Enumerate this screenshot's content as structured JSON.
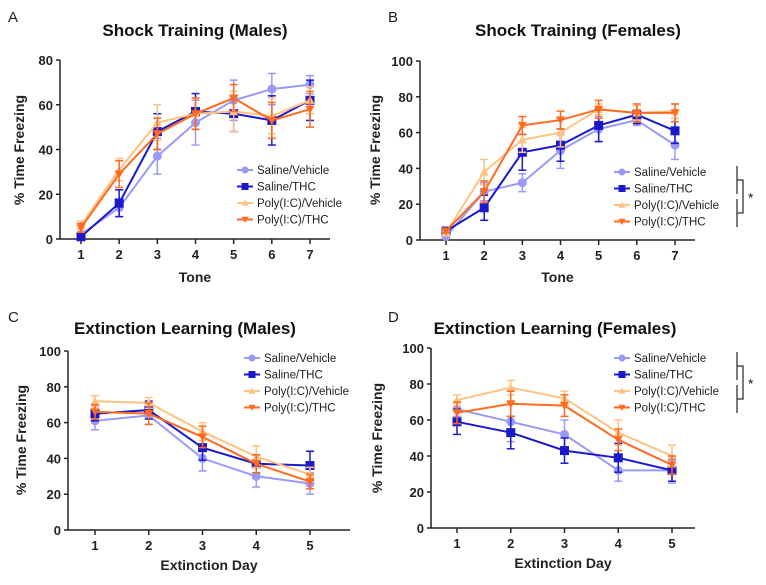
{
  "colors": {
    "Saline/Vehicle": "#9a9af6",
    "Saline/THC": "#1a1acc",
    "Poly(I:C)/Vehicle": "#ffc283",
    "Poly(I:C)/THC": "#ff6a1f"
  },
  "chart_data": [
    {
      "type": "line",
      "panel_label": "A",
      "title": "Shock Training (Males)",
      "xlabel": "Tone",
      "ylabel": "% Time Freezing",
      "ylim": [
        0,
        80
      ],
      "yticks": [
        0,
        20,
        40,
        60,
        80
      ],
      "x": [
        1,
        2,
        3,
        4,
        5,
        6,
        7
      ],
      "legend": "bottom-right",
      "annotation": "",
      "series": [
        {
          "name": "Saline/Vehicle",
          "marker": "circle",
          "values": [
            2,
            14,
            37,
            52,
            62,
            67,
            69
          ],
          "error": [
            1,
            4,
            8,
            10,
            9,
            7,
            4
          ]
        },
        {
          "name": "Saline/THC",
          "marker": "square",
          "values": [
            1,
            16,
            48,
            57,
            56,
            53,
            62
          ],
          "error": [
            1,
            6,
            8,
            8,
            8,
            11,
            9
          ]
        },
        {
          "name": "Poly(I:C)/Vehicle",
          "marker": "triangle-up",
          "values": [
            6,
            31,
            52,
            56,
            57,
            55,
            62
          ],
          "error": [
            2,
            5,
            8,
            7,
            9,
            8,
            6
          ]
        },
        {
          "name": "Poly(I:C)/THC",
          "marker": "triangle-down",
          "values": [
            5,
            29,
            47,
            56,
            63,
            53,
            58
          ],
          "error": [
            2,
            6,
            7,
            7,
            6,
            8,
            8
          ]
        }
      ]
    },
    {
      "type": "line",
      "panel_label": "B",
      "title": "Shock Training (Females)",
      "xlabel": "Tone",
      "ylabel": "% Time Freezing",
      "ylim": [
        0,
        100
      ],
      "yticks": [
        0,
        20,
        40,
        60,
        80,
        100
      ],
      "x": [
        1,
        2,
        3,
        4,
        5,
        6,
        7
      ],
      "legend": "bottom-right",
      "annotation": "*",
      "series": [
        {
          "name": "Saline/Vehicle",
          "marker": "circle",
          "values": [
            2,
            27,
            32,
            50,
            62,
            67,
            53
          ],
          "error": [
            1,
            5,
            5,
            10,
            7,
            3,
            8
          ]
        },
        {
          "name": "Saline/THC",
          "marker": "square",
          "values": [
            5,
            18,
            49,
            53,
            64,
            70,
            61
          ],
          "error": [
            1,
            7,
            10,
            9,
            9,
            5,
            7
          ]
        },
        {
          "name": "Poly(I:C)/Vehicle",
          "marker": "triangle-up",
          "values": [
            4,
            38,
            56,
            60,
            73,
            71,
            72
          ],
          "error": [
            1,
            7,
            7,
            8,
            3,
            4,
            4
          ]
        },
        {
          "name": "Poly(I:C)/THC",
          "marker": "triangle-down",
          "values": [
            5,
            27,
            64,
            67,
            73,
            71,
            71
          ],
          "error": [
            1,
            6,
            5,
            5,
            5,
            5,
            5
          ]
        }
      ]
    },
    {
      "type": "line",
      "panel_label": "C",
      "title": "Extinction Learning (Males)",
      "xlabel": "Extinction Day",
      "ylabel": "% Time Freezing",
      "ylim": [
        0,
        100
      ],
      "yticks": [
        0,
        20,
        40,
        60,
        80,
        100
      ],
      "x": [
        1,
        2,
        3,
        4,
        5
      ],
      "legend": "top-right",
      "annotation": "",
      "series": [
        {
          "name": "Saline/Vehicle",
          "marker": "circle",
          "values": [
            61,
            64,
            40,
            30,
            26
          ],
          "error": [
            5,
            5,
            7,
            6,
            6
          ]
        },
        {
          "name": "Saline/THC",
          "marker": "square",
          "values": [
            65,
            67,
            46,
            37,
            36
          ],
          "error": [
            4,
            5,
            7,
            5,
            8
          ]
        },
        {
          "name": "Poly(I:C)/Vehicle",
          "marker": "triangle-up",
          "values": [
            72,
            71,
            55,
            41,
            31
          ],
          "error": [
            3,
            3,
            5,
            6,
            4
          ]
        },
        {
          "name": "Poly(I:C)/THC",
          "marker": "triangle-down",
          "values": [
            66,
            65,
            52,
            37,
            27
          ],
          "error": [
            4,
            6,
            6,
            5,
            4
          ]
        }
      ]
    },
    {
      "type": "line",
      "panel_label": "D",
      "title": "Extinction Learning (Females)",
      "xlabel": "Extinction Day",
      "ylabel": "% Time Freezing",
      "ylim": [
        0,
        100
      ],
      "yticks": [
        0,
        20,
        40,
        60,
        80,
        100
      ],
      "x": [
        1,
        2,
        3,
        4,
        5
      ],
      "legend": "top-right",
      "annotation": "*",
      "series": [
        {
          "name": "Saline/Vehicle",
          "marker": "circle",
          "values": [
            66,
            59,
            52,
            32,
            32
          ],
          "error": [
            4,
            11,
            8,
            6,
            7
          ]
        },
        {
          "name": "Saline/THC",
          "marker": "square",
          "values": [
            59,
            53,
            43,
            39,
            32
          ],
          "error": [
            7,
            9,
            7,
            8,
            6
          ]
        },
        {
          "name": "Poly(I:C)/Vehicle",
          "marker": "triangle-up",
          "values": [
            71,
            78,
            72,
            53,
            40
          ],
          "error": [
            3,
            4,
            4,
            7,
            6
          ]
        },
        {
          "name": "Poly(I:C)/THC",
          "marker": "triangle-down",
          "values": [
            64,
            69,
            68,
            49,
            35
          ],
          "error": [
            6,
            7,
            6,
            6,
            5
          ]
        }
      ]
    }
  ]
}
